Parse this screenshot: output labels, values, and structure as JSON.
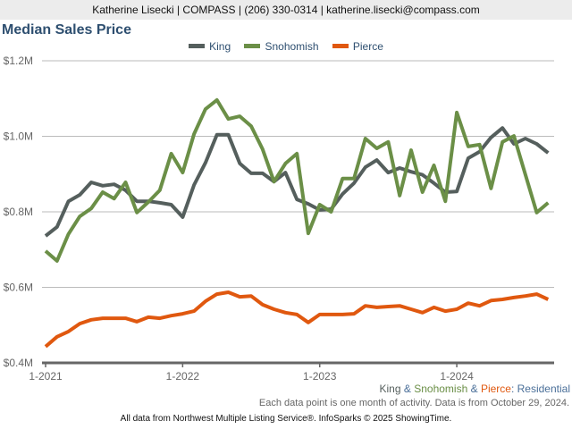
{
  "header": {
    "contact": "Katherine Lisecki | COMPASS | (206) 330-0314 | katherine.lisecki@compass.com"
  },
  "chart_data": {
    "type": "line",
    "title": "Median Sales Price",
    "xlabel": "",
    "ylabel": "",
    "ylim": [
      400000,
      1200000
    ],
    "yticks": [
      400000,
      600000,
      800000,
      1000000,
      1200000
    ],
    "ytick_labels": [
      "$0.4M",
      "$0.6M",
      "$0.8M",
      "$1.0M",
      "$1.2M"
    ],
    "xtick_labels": [
      "1-2021",
      "1-2022",
      "1-2023",
      "1-2024"
    ],
    "grid": true,
    "legend_position": "top-center",
    "x": [
      "1-2021",
      "2-2021",
      "3-2021",
      "4-2021",
      "5-2021",
      "6-2021",
      "7-2021",
      "8-2021",
      "9-2021",
      "10-2021",
      "11-2021",
      "12-2021",
      "1-2022",
      "2-2022",
      "3-2022",
      "4-2022",
      "5-2022",
      "6-2022",
      "7-2022",
      "8-2022",
      "9-2022",
      "10-2022",
      "11-2022",
      "12-2022",
      "1-2023",
      "2-2023",
      "3-2023",
      "4-2023",
      "5-2023",
      "6-2023",
      "7-2023",
      "8-2023",
      "9-2023",
      "10-2023",
      "11-2023",
      "12-2023",
      "1-2024",
      "2-2024",
      "3-2024",
      "4-2024",
      "5-2024",
      "6-2024",
      "7-2024",
      "8-2024",
      "9-2024"
    ],
    "series": [
      {
        "name": "King",
        "color": "#555f5d",
        "values": [
          736000,
          760000,
          828000,
          845000,
          878000,
          869000,
          873000,
          857000,
          828000,
          828000,
          824000,
          819000,
          786000,
          871000,
          930000,
          1004000,
          1004000,
          928000,
          902000,
          902000,
          880000,
          904000,
          833000,
          821000,
          805000,
          807000,
          847000,
          876000,
          918000,
          937000,
          904000,
          916000,
          906000,
          898000,
          876000,
          852000,
          854000,
          942000,
          959000,
          997000,
          1022000,
          980000,
          994000,
          980000,
          956000
        ]
      },
      {
        "name": "Snohomish",
        "color": "#6b8f47",
        "values": [
          696000,
          670000,
          741000,
          788000,
          809000,
          852000,
          835000,
          878000,
          798000,
          826000,
          857000,
          954000,
          904000,
          1006000,
          1072000,
          1096000,
          1046000,
          1053000,
          1027000,
          966000,
          880000,
          928000,
          954000,
          743000,
          819000,
          800000,
          888000,
          888000,
          994000,
          968000,
          985000,
          843000,
          963000,
          852000,
          923000,
          828000,
          1063000,
          973000,
          978000,
          862000,
          985000,
          1001000,
          899000,
          798000,
          824000
        ]
      },
      {
        "name": "Pierce",
        "color": "#e0580f",
        "values": [
          443000,
          469000,
          483000,
          504000,
          514000,
          518000,
          518000,
          518000,
          509000,
          521000,
          518000,
          525000,
          530000,
          537000,
          563000,
          582000,
          587000,
          575000,
          577000,
          554000,
          542000,
          533000,
          528000,
          507000,
          528000,
          528000,
          528000,
          530000,
          551000,
          547000,
          549000,
          551000,
          542000,
          533000,
          547000,
          537000,
          542000,
          558000,
          551000,
          565000,
          568000,
          573000,
          577000,
          582000,
          568000
        ]
      }
    ]
  },
  "subtitle": {
    "king": "King",
    "amp1": " & ",
    "snohomish": "Snohomish",
    "amp2": " & ",
    "pierce": "Pierce",
    "residential": ": Residential"
  },
  "note": "Each data point is one month of activity. Data is from October 29, 2024.",
  "footer": "All data from Northwest Multiple Listing Service®. InfoSparks © 2025 ShowingTime."
}
